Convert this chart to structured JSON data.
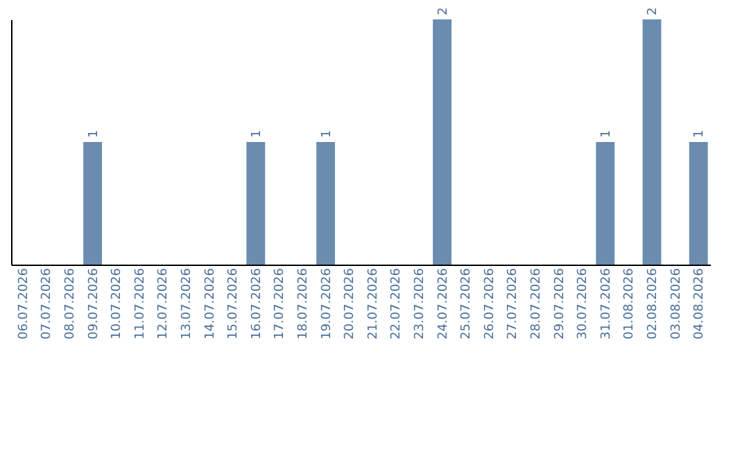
{
  "chart_data": {
    "type": "bar",
    "categories": [
      "06.07.2026",
      "07.07.2026",
      "08.07.2026",
      "09.07.2026",
      "10.07.2026",
      "11.07.2026",
      "12.07.2026",
      "13.07.2026",
      "14.07.2026",
      "15.07.2026",
      "16.07.2026",
      "17.07.2026",
      "18.07.2026",
      "19.07.2026",
      "20.07.2026",
      "21.07.2026",
      "22.07.2026",
      "23.07.2026",
      "24.07.2026",
      "25.07.2026",
      "26.07.2026",
      "27.07.2026",
      "28.07.2026",
      "29.07.2026",
      "30.07.2026",
      "31.07.2026",
      "01.08.2026",
      "02.08.2026",
      "03.08.2026",
      "04.08.2026"
    ],
    "values": [
      0,
      0,
      0,
      1,
      0,
      0,
      0,
      0,
      0,
      0,
      1,
      0,
      0,
      1,
      0,
      0,
      0,
      0,
      2,
      0,
      0,
      0,
      0,
      0,
      0,
      1,
      0,
      2,
      0,
      1
    ],
    "value_labels": [
      null,
      null,
      null,
      "1",
      null,
      null,
      null,
      null,
      null,
      null,
      "1",
      null,
      null,
      "1",
      null,
      null,
      null,
      null,
      "2",
      null,
      null,
      null,
      null,
      null,
      null,
      "1",
      null,
      "2",
      null,
      "1"
    ],
    "color": "#6a8caf",
    "grid": false
  }
}
